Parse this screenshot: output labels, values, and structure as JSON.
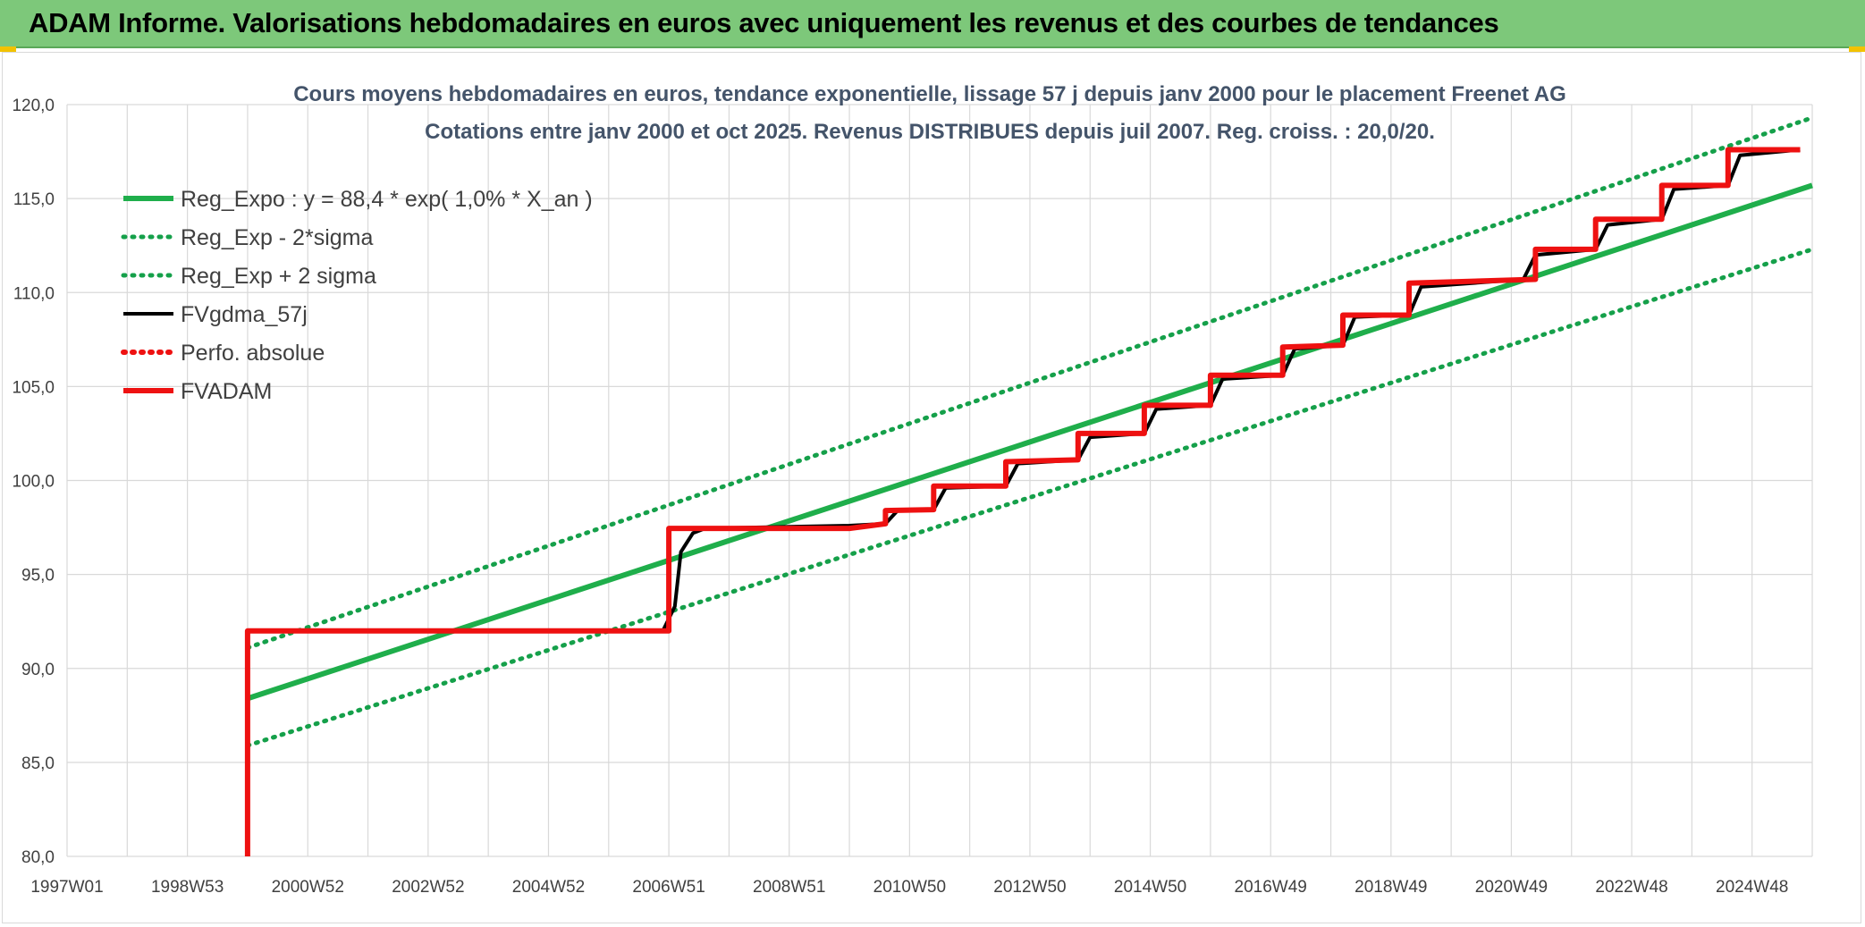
{
  "header": {
    "title": "ADAM Informe. Valorisations hebdomadaires en euros avec uniquement les revenus et des courbes de tendances"
  },
  "colors": {
    "banner": "#7dc87a",
    "green": "#1fae4b",
    "green_dotted": "#15a04a",
    "black": "#000000",
    "red": "#ee1111",
    "grid": "#d9d9d9"
  },
  "chart_data": {
    "type": "line",
    "title": "Cours moyens hebdomadaires en euros, tendance exponentielle, lissage 57 j depuis janv 2000 pour le placement Freenet AG",
    "subtitle": "Cotations entre janv 2000 et oct 2025. Revenus DISTRIBUES depuis juil 2007. Reg. croiss. : 20,0/20.",
    "xlabel": "",
    "ylabel": "",
    "x_ticks": [
      "1997W01",
      "1998W53",
      "2000W52",
      "2002W52",
      "2004W52",
      "2006W51",
      "2008W51",
      "2010W50",
      "2012W50",
      "2014W50",
      "2016W49",
      "2018W49",
      "2020W49",
      "2022W48",
      "2024W48"
    ],
    "y_ticks": [
      "80,0",
      "85,0",
      "90,0",
      "95,0",
      "100,0",
      "105,0",
      "110,0",
      "115,0",
      "120,0"
    ],
    "xlim": [
      1997.0,
      2026.0
    ],
    "ylim": [
      80,
      120
    ],
    "grid": true,
    "legend_position": "top-left",
    "series": [
      {
        "name": "Reg_Expo : y = 88,4 * exp( 1,0% *  X_an )",
        "style": "solid",
        "color": "#1fae4b",
        "x": [
          2000.0,
          2026.0
        ],
        "y": [
          88.4,
          115.7
        ]
      },
      {
        "name": "Reg_Exp - 2*sigma",
        "style": "dotted",
        "color": "#15a04a",
        "x": [
          2000.0,
          2026.0
        ],
        "y": [
          85.9,
          112.3
        ]
      },
      {
        "name": "Reg_Exp + 2 sigma",
        "style": "dotted",
        "color": "#15a04a",
        "x": [
          2000.0,
          2026.0
        ],
        "y": [
          91.1,
          119.3
        ]
      },
      {
        "name": "FVgdma_57j",
        "style": "solid",
        "color": "#000000",
        "x": [
          2000.0,
          2006.9,
          2007.1,
          2007.2,
          2007.4,
          2007.6,
          2010.0,
          2010.6,
          2010.8,
          2011.4,
          2011.6,
          2012.6,
          2012.8,
          2013.8,
          2014.0,
          2014.9,
          2015.1,
          2016.0,
          2016.2,
          2017.2,
          2017.4,
          2018.2,
          2018.4,
          2019.3,
          2019.5,
          2021.2,
          2021.4,
          2022.4,
          2022.6,
          2023.5,
          2023.7,
          2024.6,
          2024.8,
          2025.8
        ],
        "y": [
          92.0,
          92.0,
          93.3,
          96.2,
          97.2,
          97.45,
          97.6,
          97.7,
          98.4,
          98.45,
          99.6,
          99.7,
          100.9,
          101.1,
          102.3,
          102.5,
          103.8,
          104.0,
          105.4,
          105.6,
          107.0,
          107.2,
          108.7,
          108.8,
          110.3,
          110.7,
          112.0,
          112.3,
          113.6,
          113.9,
          115.5,
          115.7,
          117.3,
          117.6
        ]
      },
      {
        "name": "Perfo. absolue",
        "style": "dotted",
        "color": "#ee1111",
        "x": [],
        "y": []
      },
      {
        "name": "FVADAM",
        "style": "solid",
        "color": "#ee1111",
        "x": [
          2000.0,
          2000.0,
          2007.0,
          2007.0,
          2010.0,
          2010.6,
          2010.6,
          2011.4,
          2011.4,
          2012.6,
          2012.6,
          2013.8,
          2013.8,
          2014.9,
          2014.9,
          2016.0,
          2016.0,
          2017.2,
          2017.2,
          2018.2,
          2018.2,
          2019.3,
          2019.3,
          2021.4,
          2021.4,
          2022.4,
          2022.4,
          2023.5,
          2023.5,
          2024.6,
          2024.6,
          2025.8
        ],
        "y": [
          80.0,
          92.0,
          92.0,
          97.45,
          97.45,
          97.7,
          98.4,
          98.45,
          99.7,
          99.7,
          101.0,
          101.1,
          102.5,
          102.5,
          104.0,
          104.0,
          105.6,
          105.6,
          107.1,
          107.2,
          108.8,
          108.8,
          110.5,
          110.7,
          112.3,
          112.3,
          113.9,
          113.9,
          115.7,
          115.7,
          117.6,
          117.6
        ]
      }
    ]
  }
}
